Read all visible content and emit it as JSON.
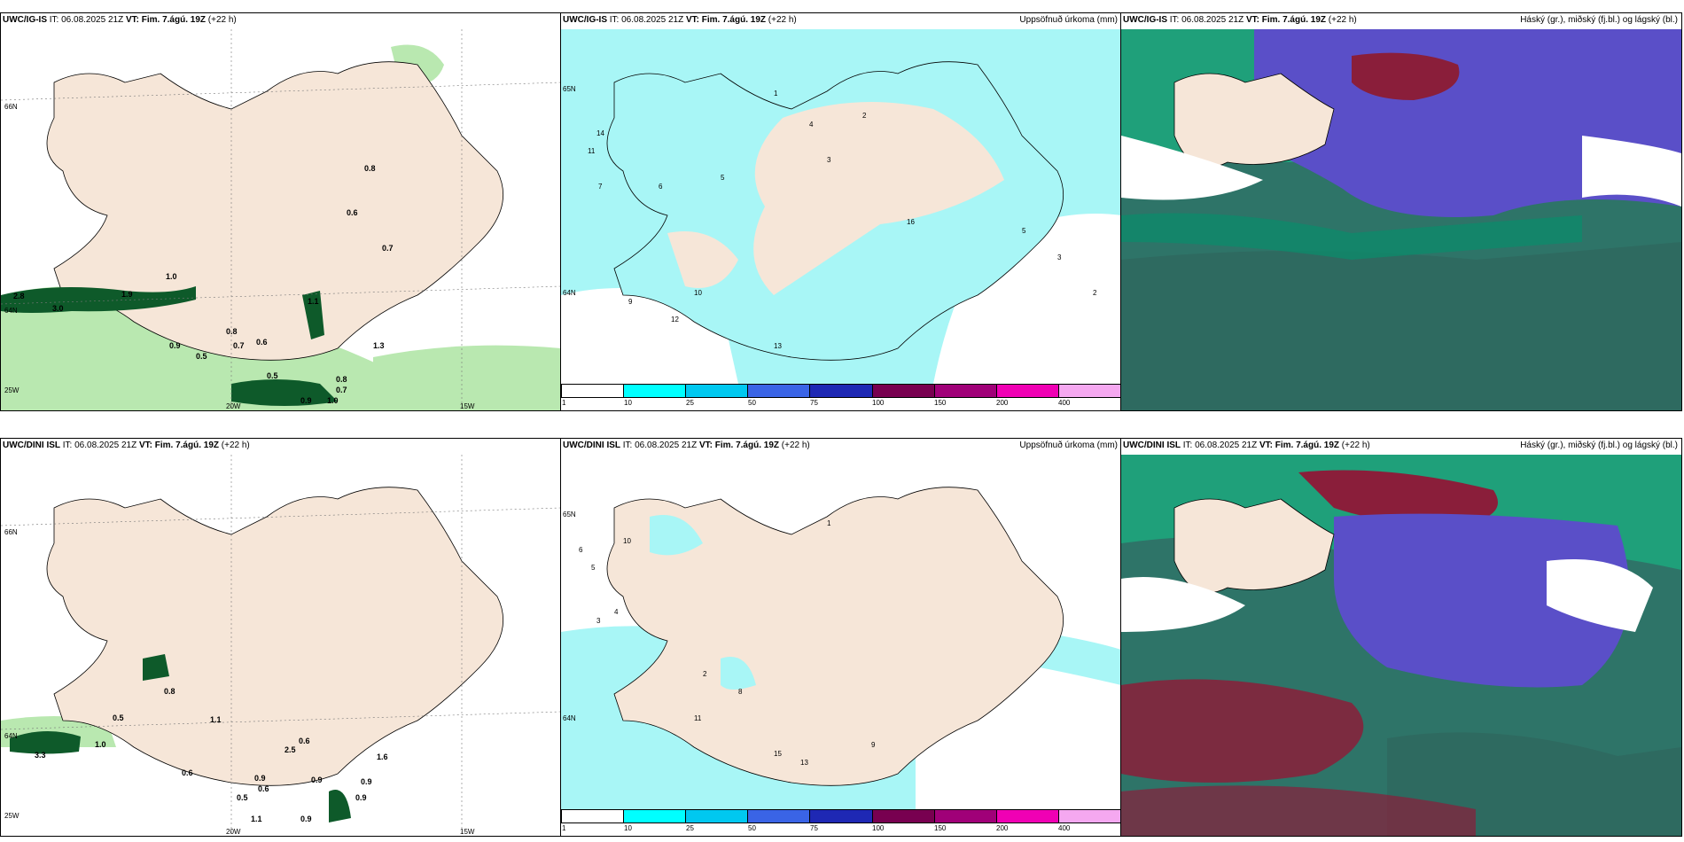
{
  "colors": {
    "land": "#f6e6d8",
    "ocean": "#ffffff",
    "light_green": "#b9e8b0",
    "mid_green": "#6cc46a",
    "dark_green": "#0e5a2a",
    "precip_cyan": "#a8f6f6",
    "cloud_high": "#0e8a6a",
    "cloud_mid": "#5a4fc8",
    "cloud_low": "#8a1e3a",
    "cloud_base": "#2e7468"
  },
  "colorbar": {
    "labels": [
      "1",
      "10",
      "25",
      "50",
      "75",
      "100",
      "150",
      "200",
      "400"
    ],
    "cells": [
      "#ffffff",
      "#00ffff",
      "#00c8f0",
      "#3a64e6",
      "#1e28b4",
      "#780050",
      "#a00078",
      "#f000b4",
      "#f5a8f0"
    ]
  },
  "rows": [
    {
      "model": "UWC/IG-IS",
      "init": "IT: 06.08.2025 21Z",
      "vt_label": "VT:",
      "vt": "Fim. 7.ágú. 19Z",
      "lead": "(+22 h)",
      "precip_title": "Uppsöfnuð úrkoma (mm)",
      "cloud_title": "Háský (gr.), miðský (fj.bl.) og lágský (bl.)",
      "lat_labels": [
        "66N",
        "64N"
      ],
      "lat_label_third": "25W",
      "lon_labels": [
        "20W",
        "15W"
      ],
      "precip_left_lat": [
        "65N",
        "64N"
      ],
      "wind_values": [
        "0.8",
        "0.6",
        "0.7",
        "1.0",
        "2.8",
        "3.0",
        "1.9",
        "1.1",
        "0.5",
        "0.9",
        "0.8",
        "0.7",
        "0.6",
        "0.5",
        "1.3",
        "0.8",
        "0.7",
        "0.9",
        "1.0"
      ],
      "precip_values": [
        "14",
        "11",
        "7",
        "1",
        "2",
        "3",
        "4",
        "5",
        "6",
        "9",
        "10",
        "12",
        "16",
        "13",
        "5",
        "3",
        "2"
      ]
    },
    {
      "model": "UWC/DINI ISL",
      "init": "IT: 06.08.2025 21Z",
      "vt_label": "VT:",
      "vt": "Fim. 7.ágú. 19Z",
      "lead": "(+22 h)",
      "precip_title": "Uppsöfnuð úrkoma (mm)",
      "cloud_title": "Háský (gr.), miðský (fj.bl.) og lágský (bl.)",
      "lat_labels": [
        "66N",
        "64N"
      ],
      "lat_label_third": "25W",
      "lon_labels": [
        "20W",
        "15W"
      ],
      "precip_left_lat": [
        "65N",
        "64N"
      ],
      "wind_values": [
        "0.5",
        "0.8",
        "1.1",
        "1.0",
        "3.3",
        "0.6",
        "0.9",
        "0.5",
        "0.6",
        "0.9",
        "1.1",
        "0.9",
        "2.5",
        "0.9",
        "0.6",
        "0.9",
        "1.6"
      ],
      "precip_values": [
        "10",
        "6",
        "5",
        "4",
        "3",
        "2",
        "1",
        "11",
        "15",
        "13",
        "9",
        "8"
      ]
    }
  ]
}
